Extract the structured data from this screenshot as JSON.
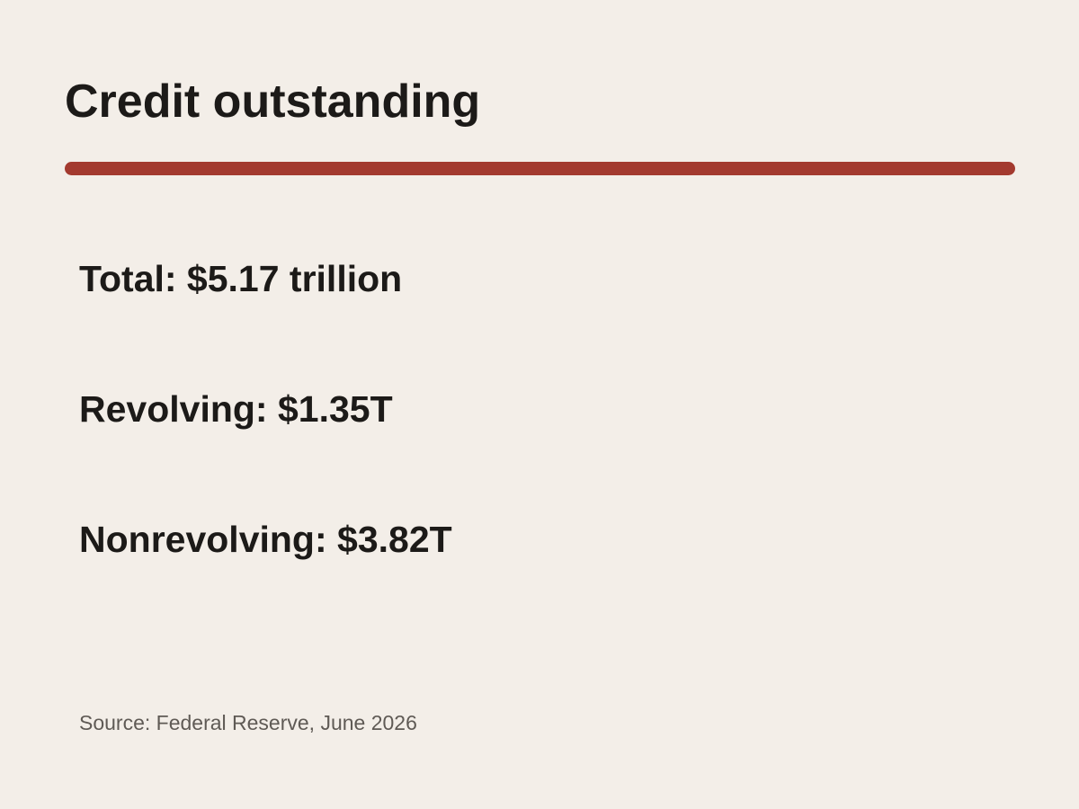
{
  "header": {
    "title": "Credit outstanding"
  },
  "stats": [
    "Total: $5.17 trillion",
    "Revolving: $1.35T",
    "Nonrevolving: $3.82T"
  ],
  "footer": {
    "source": "Source: Federal Reserve, June 2026"
  }
}
